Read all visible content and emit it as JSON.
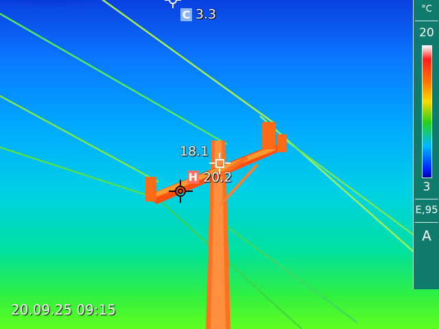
{
  "measurements": {
    "cold": {
      "tag": "C",
      "value": "3.3"
    },
    "hot": {
      "tag": "H",
      "value": "20.2"
    },
    "center": {
      "value": "18.1"
    }
  },
  "scale": {
    "unit": "°C",
    "max": "20",
    "min": "3"
  },
  "emissivity": "E,95",
  "mode": "A",
  "timestamp": "20.09.25 09:15"
}
